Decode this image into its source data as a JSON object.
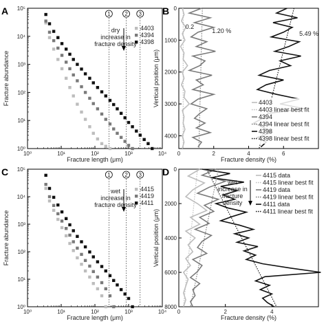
{
  "colors": {
    "light": "#bdbdbd",
    "mid": "#7a7a7a",
    "dark": "#111111"
  },
  "chart_data": [
    {
      "panel": "A",
      "type": "scatter",
      "xscale": "log",
      "yscale": "log",
      "xlim": [
        1,
        10000
      ],
      "ylim": [
        1,
        100000
      ],
      "xticks": [
        "10⁰",
        "10¹",
        "10²",
        "10³",
        "10⁴"
      ],
      "yticks": [
        "10⁰",
        "10¹",
        "10²",
        "10³",
        "10⁴",
        "10⁵"
      ],
      "xlabel": "Fracture length (μm)",
      "ylabel": "Fracture abundance",
      "circled_markers": [
        {
          "label": "1",
          "x": 260
        },
        {
          "label": "2",
          "x": 850
        },
        {
          "label": "3",
          "x": 2200
        }
      ],
      "annotation": [
        "dry",
        "increase in",
        "fracture density"
      ],
      "series": [
        {
          "name": "4403",
          "color": "light",
          "x": [
            3.5,
            4.5,
            6,
            8,
            10.5,
            14,
            18,
            23,
            30,
            40,
            52,
            70,
            90,
            120,
            160,
            210,
            280
          ],
          "y": [
            30000,
            9000,
            3500,
            1500,
            700,
            320,
            150,
            75,
            38,
            20,
            11,
            6,
            3.5,
            2.2,
            1.5,
            1.2,
            1
          ]
        },
        {
          "name": "4394",
          "color": "mid",
          "x": [
            3.5,
            4.5,
            6,
            8,
            10.5,
            14,
            18,
            23,
            30,
            40,
            52,
            70,
            90,
            120,
            160,
            210,
            280,
            360,
            460,
            600,
            780,
            1000,
            1300
          ],
          "y": [
            35000,
            14000,
            7000,
            3800,
            2100,
            1200,
            700,
            420,
            260,
            160,
            100,
            62,
            40,
            26,
            17,
            11,
            7.5,
            5,
            3.5,
            2.5,
            1.8,
            1.3,
            1
          ]
        },
        {
          "name": "4398",
          "color": "dark",
          "x": [
            3.5,
            4.5,
            6,
            8,
            10.5,
            14,
            18,
            23,
            30,
            40,
            52,
            70,
            90,
            120,
            160,
            210,
            280,
            360,
            460,
            600,
            780,
            1000,
            1300,
            1700,
            2200,
            2900,
            3800,
            5000
          ],
          "y": [
            60000,
            28000,
            15000,
            9000,
            5500,
            3500,
            2300,
            1500,
            1000,
            680,
            460,
            320,
            220,
            150,
            105,
            75,
            52,
            37,
            26,
            18,
            12.5,
            8.5,
            6,
            4.2,
            3,
            2.1,
            1.5,
            1
          ]
        }
      ]
    },
    {
      "panel": "B",
      "type": "line",
      "xlim": [
        0,
        8
      ],
      "ylim": [
        0,
        4400
      ],
      "xticks": [
        "0",
        "2",
        "4",
        "6"
      ],
      "yticks": [
        "0",
        "1000",
        "2000",
        "3000",
        "4000"
      ],
      "xlabel": "Fracture density (%)",
      "ylabel": "Vertical position (μm)",
      "value_labels": [
        {
          "text": "0.2",
          "color": "light"
        },
        {
          "text": "1.20 %",
          "color": "mid"
        },
        {
          "text": "5.49 %",
          "color": "dark"
        }
      ],
      "legend": [
        "4403",
        "4403 linear best fit",
        "4394",
        "4394 linear best fit",
        "4398",
        "4398 linear best fit"
      ],
      "series": [
        {
          "name": "4403",
          "color": "light",
          "y": [
            0,
            200,
            400,
            600,
            800,
            1000,
            1200,
            1400,
            1600,
            1800,
            2000,
            2200,
            2400,
            2600,
            2800,
            3000,
            3200,
            3400,
            3600,
            3800,
            4000,
            4200,
            4400
          ],
          "x": [
            0.2,
            0.3,
            0.15,
            0.4,
            0.2,
            0.35,
            0.1,
            0.3,
            0.25,
            0.5,
            0.2,
            0.3,
            0.15,
            0.35,
            0.3,
            0.6,
            0.2,
            0.3,
            0.25,
            0.35,
            0.2,
            0.3,
            0.2
          ]
        },
        {
          "name": "4394",
          "color": "mid",
          "y": [
            0,
            150,
            300,
            450,
            600,
            750,
            900,
            1050,
            1200,
            1350,
            1500,
            1650,
            1800,
            1950,
            2100,
            2250,
            2400,
            2550,
            2700,
            2850,
            3000,
            3150,
            3300,
            3450,
            3600,
            3750,
            3900,
            4050,
            4200,
            4350
          ],
          "x": [
            1.3,
            0.6,
            1.8,
            0.9,
            2.0,
            1.1,
            0.7,
            1.6,
            1.0,
            2.1,
            0.8,
            1.5,
            1.2,
            0.6,
            1.9,
            1.0,
            1.4,
            0.8,
            2.0,
            1.1,
            0.7,
            1.6,
            1.2,
            0.9,
            1.5,
            1.0,
            1.8,
            0.8,
            1.3,
            1.1
          ]
        },
        {
          "name": "4398",
          "color": "dark",
          "y": [
            0,
            150,
            300,
            450,
            600,
            750,
            900,
            1050,
            1200,
            1350,
            1500,
            1650,
            1800,
            1950,
            2100,
            2250,
            2400,
            2550,
            2700,
            2850,
            3000,
            3150,
            3300,
            3450,
            3600,
            3750,
            3900,
            4050,
            4200,
            4350
          ],
          "x": [
            6.2,
            5.6,
            6.8,
            5.4,
            6.5,
            6.0,
            5.3,
            6.9,
            6.3,
            5.5,
            7.0,
            5.8,
            6.4,
            5.2,
            4.6,
            6.0,
            5.0,
            4.5,
            5.6,
            6.9,
            5.8,
            7.2,
            5.1,
            4.8,
            4.3,
            4.9,
            5.3,
            4.5,
            5.0,
            4.7
          ]
        }
      ],
      "fits": [
        {
          "color": "light",
          "x1": 0.25,
          "y1": 0,
          "x2": 0.25,
          "y2": 4400
        },
        {
          "color": "mid",
          "x1": 1.35,
          "y1": 0,
          "x2": 1.15,
          "y2": 4400
        },
        {
          "color": "dark",
          "x1": 6.6,
          "y1": 0,
          "x2": 4.6,
          "y2": 4400
        }
      ]
    },
    {
      "panel": "C",
      "type": "scatter",
      "xscale": "log",
      "yscale": "log",
      "xlim": [
        1,
        10000
      ],
      "ylim": [
        1,
        100000
      ],
      "xticks": [
        "10⁰",
        "10¹",
        "10²",
        "10³",
        "10⁴"
      ],
      "yticks": [
        "10⁰",
        "10¹",
        "10²",
        "10³",
        "10⁴",
        "10⁵"
      ],
      "xlabel": "Fracture length (μm)",
      "ylabel": "Fracture abundance",
      "circled_markers": [
        {
          "label": "1",
          "x": 260
        },
        {
          "label": "2",
          "x": 850
        },
        {
          "label": "3",
          "x": 2200
        }
      ],
      "annotation": [
        "wet",
        "increase in",
        "fracture density"
      ],
      "series": [
        {
          "name": "4415",
          "color": "light",
          "x": [
            3.5,
            4.5,
            6,
            8,
            10.5,
            14,
            18,
            23,
            30,
            40,
            52,
            70,
            90,
            120,
            160,
            210
          ],
          "y": [
            20000,
            7000,
            3200,
            1500,
            750,
            380,
            200,
            110,
            60,
            35,
            20,
            12,
            7,
            4.5,
            2.5,
            1
          ]
        },
        {
          "name": "4419",
          "color": "mid",
          "x": [
            3.5,
            4.5,
            6,
            8,
            10.5,
            14,
            18,
            23,
            30,
            40,
            52,
            70,
            90,
            120,
            160,
            210,
            280,
            360
          ],
          "y": [
            28000,
            10000,
            4800,
            2400,
            1300,
            700,
            400,
            230,
            135,
            80,
            48,
            30,
            19,
            12,
            7.5,
            4.5,
            2.5,
            1
          ]
        },
        {
          "name": "4411",
          "color": "dark",
          "x": [
            3.5,
            4.5,
            6,
            8,
            10.5,
            14,
            18,
            23,
            30,
            40,
            52,
            70,
            90,
            120,
            160,
            210,
            280,
            360,
            460,
            600,
            780,
            1000,
            1300
          ],
          "y": [
            60000,
            20000,
            9500,
            5000,
            2800,
            1600,
            950,
            580,
            360,
            230,
            150,
            98,
            65,
            43,
            29,
            20,
            13.5,
            9,
            6.2,
            4.2,
            2.9,
            2,
            1
          ]
        }
      ]
    },
    {
      "panel": "D",
      "type": "line",
      "xlim": [
        0,
        6
      ],
      "ylim": [
        0,
        8000
      ],
      "xticks": [
        "0",
        "2",
        "4"
      ],
      "yticks": [
        "0",
        "2000",
        "4000",
        "6000",
        "8000"
      ],
      "xlabel": "Fracture density (%)",
      "ylabel": "Vertical position (μm)",
      "annotation": [
        "wet",
        "increase in",
        "fracture",
        "density"
      ],
      "legend": [
        "4415 data",
        "4415 linear best fit",
        "4419 data",
        "4419 linear best fit",
        "4411 data",
        "4411 linear best fit"
      ],
      "series": [
        {
          "name": "4415",
          "color": "light",
          "y": [
            0,
            400,
            800,
            1200,
            1600,
            2000,
            2400,
            2800,
            3200,
            3600,
            4000,
            4400,
            4800,
            5200,
            5600,
            6000,
            6400,
            6800,
            7200,
            7600,
            8000
          ],
          "x": [
            0.9,
            0.4,
            1.1,
            0.6,
            0.3,
            0.8,
            1.2,
            0.5,
            0.9,
            0.3,
            0.7,
            0.4,
            0.6,
            0.3,
            0.5,
            0.2,
            0.4,
            0.3,
            0.2,
            0.3,
            0.2
          ]
        },
        {
          "name": "4419",
          "color": "mid",
          "y": [
            0,
            350,
            700,
            1050,
            1400,
            1750,
            2100,
            2450,
            2800,
            3150,
            3500,
            3850,
            4200,
            4550,
            4900,
            5250,
            5600,
            5950,
            6300,
            6650,
            7000,
            7350,
            7700,
            8000
          ],
          "x": [
            1.6,
            1.0,
            2.0,
            1.3,
            0.8,
            1.7,
            1.1,
            1.5,
            0.9,
            1.3,
            0.7,
            1.4,
            1.0,
            0.8,
            1.2,
            0.6,
            1.0,
            0.8,
            0.5,
            0.9,
            0.6,
            0.7,
            0.5,
            0.6
          ]
        },
        {
          "name": "4411",
          "color": "dark",
          "y": [
            0,
            250,
            500,
            750,
            1000,
            1250,
            1500,
            1750,
            2000,
            2250,
            2500,
            2750,
            3000,
            3250,
            3500,
            3750,
            4000,
            4250,
            4500,
            4750,
            5000,
            5250,
            5500,
            5750,
            6000,
            6250,
            6500,
            6750,
            7000,
            7250,
            7500,
            7750,
            8000
          ],
          "x": [
            1.0,
            2.2,
            1.4,
            2.8,
            1.8,
            2.5,
            1.9,
            2.4,
            1.6,
            2.1,
            2.9,
            2.3,
            1.8,
            2.6,
            3.2,
            2.4,
            3.0,
            2.5,
            3.4,
            2.8,
            3.3,
            2.9,
            3.6,
            4.8,
            6.1,
            3.7,
            3.3,
            3.9,
            3.5,
            4.0,
            3.6,
            3.8,
            4.1
          ]
        }
      ],
      "fits": [
        {
          "color": "light",
          "x1": 0.8,
          "y1": 0,
          "x2": 0.2,
          "y2": 8000
        },
        {
          "color": "mid",
          "x1": 1.7,
          "y1": 0,
          "x2": 0.5,
          "y2": 8000
        },
        {
          "color": "dark",
          "x1": 1.2,
          "y1": 0,
          "x2": 4.2,
          "y2": 8000
        }
      ]
    }
  ]
}
